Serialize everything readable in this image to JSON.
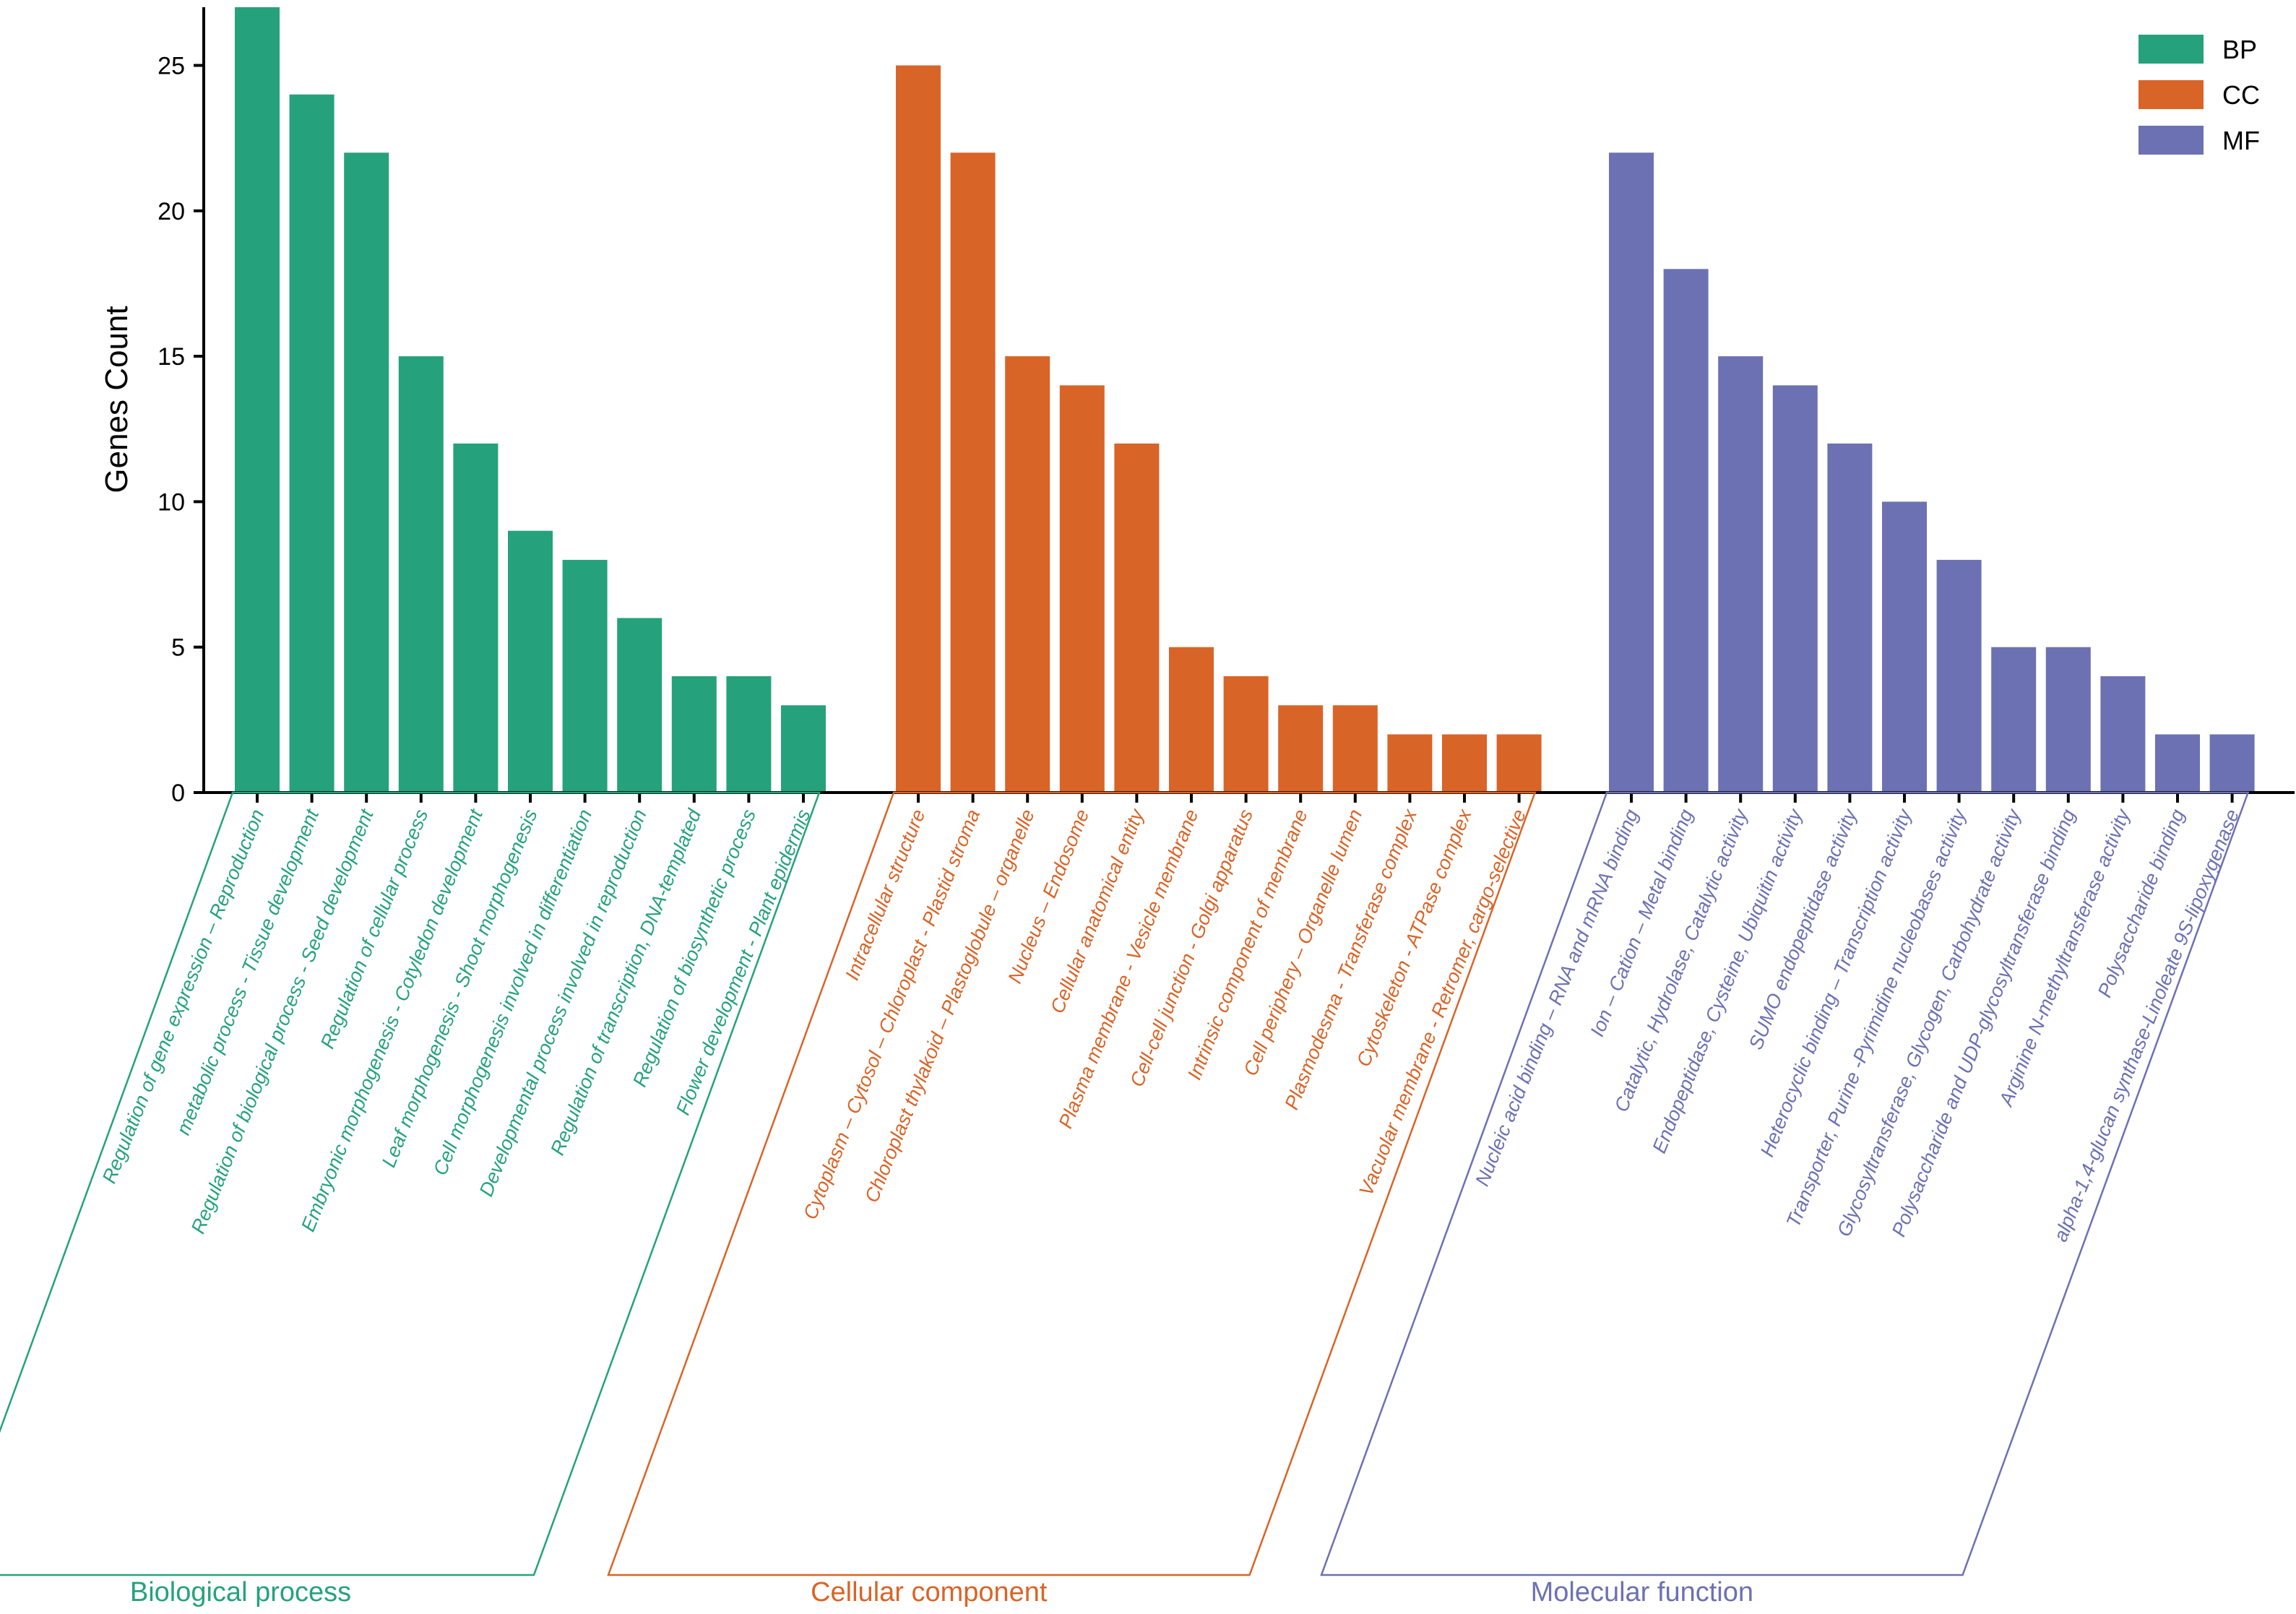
{
  "chart_data": {
    "type": "bar",
    "ylabel": "Genes Count",
    "xlabel": "",
    "ylim": [
      0,
      27
    ],
    "yticks": [
      0,
      5,
      10,
      15,
      20,
      25
    ],
    "grid": false,
    "legend_position": "top-right",
    "colors": {
      "BP": "#25a27b",
      "CC": "#d96427",
      "MF": "#6c71b3"
    },
    "series": [
      {
        "name": "BP",
        "group_label": "Biological process",
        "categories": [
          "Regulation of gene expression – Reproduction",
          "metabolic process - Tissue development",
          "Regulation of biological process - Seed development",
          "Regulation of cellular process",
          "Embryonic morphogenesis - Cotyledon development",
          "Leaf morphogenesis - Shoot morphogenesis",
          "Cell morphogenesis involved in differentiation",
          "Developmental process involved in reproduction",
          "Regulation of transcription, DNA-templated",
          "Regulation of biosynthetic process",
          "Flower development - Plant epidermis"
        ],
        "values": [
          27,
          24,
          22,
          15,
          12,
          9,
          8,
          6,
          4,
          4,
          3
        ]
      },
      {
        "name": "CC",
        "group_label": "Cellular component",
        "categories": [
          "Intracellular structure",
          "Cytoplasm – Cytosol – Chloroplast - Plastid stroma",
          "Chloroplast thylakoid – Plastoglobule – organelle",
          "Nucleus – Endosome",
          "Cellular anatomical entity",
          "Plasma membrane - Vesicle membrane",
          "Cell-cell junction - Golgi apparatus",
          "Intrinsic component of membrane",
          "Cell periphery – Organelle lumen",
          "Plasmodesma - Transferase complex",
          "Cytoskeleton - ATPase complex",
          "Vacuolar membrane - Retromer, cargo-selective"
        ],
        "values": [
          25,
          22,
          15,
          14,
          12,
          5,
          4,
          3,
          3,
          2,
          2,
          2
        ]
      },
      {
        "name": "MF",
        "group_label": "Molecular function",
        "categories": [
          "Nucleic acid binding – RNA and mRNA binding",
          "Ion – Cation – Metal  binding",
          "Catalytic, Hydrolase, Catalytic activity",
          "Endopeptidase, Cysteine, Ubiquitin activity",
          "SUMO endopeptidase activity",
          "Heterocyclic binding – Transcription activity",
          "Transporter, Purine -Pyrimidine nucleobases activity",
          "Glycosyltransferase,  Glycogen, Carbohydrate activity",
          "Polysaccharide and UDP-glycosyltransferase binding",
          "Arginine N-methyltransferase activity",
          "Polysaccharide binding",
          "alpha-1,4-glucan synthase-Linoleate 9S-lipoxygenase"
        ],
        "values": [
          22,
          18,
          15,
          14,
          12,
          10,
          8,
          5,
          5,
          4,
          2,
          2
        ]
      }
    ]
  }
}
